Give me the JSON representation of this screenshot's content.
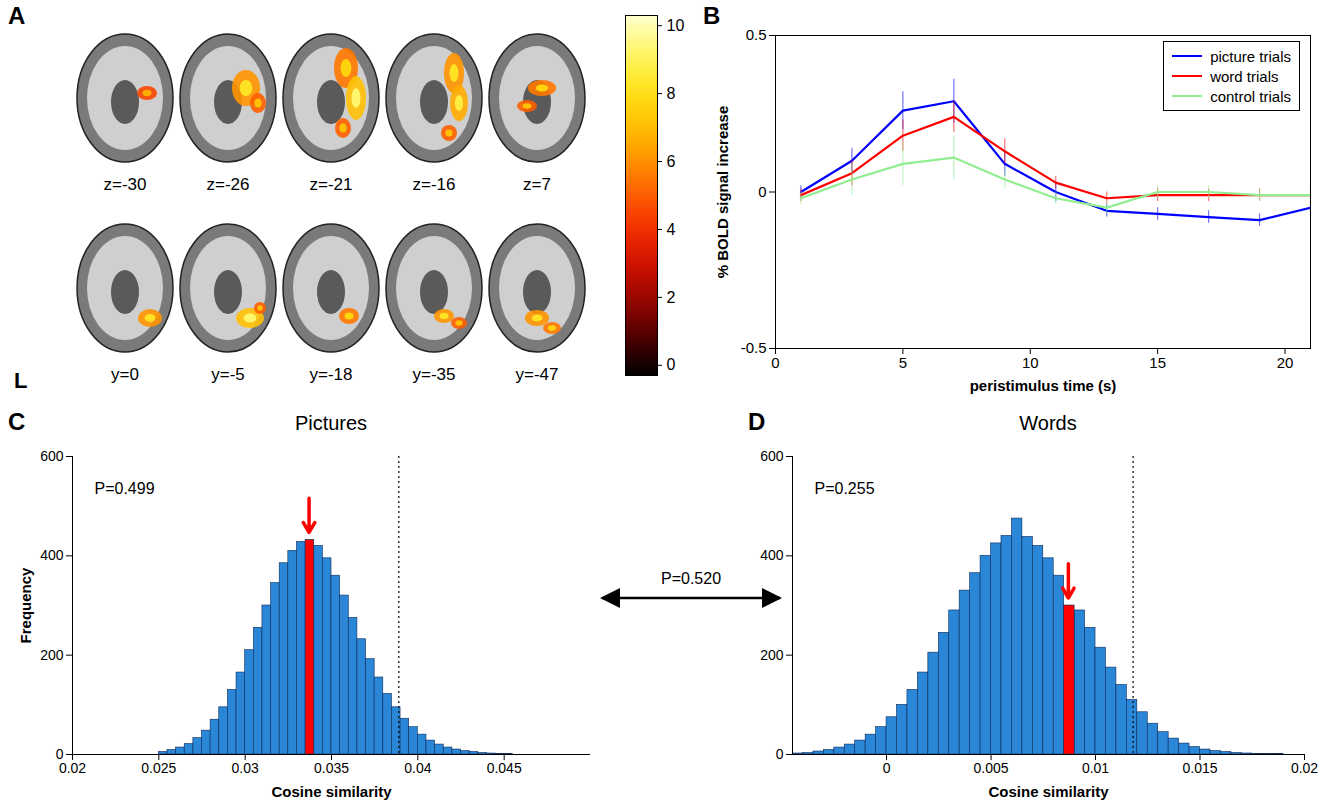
{
  "chart_data": [
    {
      "panel": "A",
      "type": "image",
      "rows": [
        [
          "z=-30",
          "z=-26",
          "z=-21",
          "z=-16",
          "z=7"
        ],
        [
          "y=0",
          "y=-5",
          "y=-18",
          "y=-35",
          "y=-47"
        ]
      ],
      "side_label": "L",
      "colorbar": {
        "range": [
          -0.3,
          10.3
        ],
        "ticks": [
          0,
          2,
          4,
          6,
          8,
          10
        ]
      }
    },
    {
      "panel": "B",
      "type": "line",
      "xlabel": "peristimulus time (s)",
      "ylabel": "% BOLD signal increase",
      "x": [
        1,
        3,
        5,
        7,
        9,
        11,
        13,
        15,
        17,
        19,
        21
      ],
      "xlim": [
        0,
        21
      ],
      "xticks": [
        0,
        5,
        10,
        15,
        20
      ],
      "ylim": [
        -0.5,
        0.5
      ],
      "yticks": [
        -0.5,
        0,
        0.5
      ],
      "legend": "upper right",
      "series": [
        {
          "name": "picture trials",
          "color": "#0000ff",
          "values": [
            0,
            0.1,
            0.26,
            0.29,
            0.09,
            0.0,
            -0.06,
            -0.07,
            -0.08,
            -0.09,
            -0.05
          ],
          "errors": [
            0.02,
            0.04,
            0.06,
            0.07,
            0.04,
            0.03,
            0.02,
            0.02,
            0.02,
            0.02,
            0.02
          ]
        },
        {
          "name": "word trials",
          "color": "#ff0000",
          "values": [
            -0.01,
            0.06,
            0.18,
            0.24,
            0.13,
            0.03,
            -0.02,
            -0.01,
            -0.01,
            -0.01,
            -0.01
          ],
          "errors": [
            0.02,
            0.04,
            0.05,
            0.05,
            0.04,
            0.02,
            0.02,
            0.02,
            0.02,
            0.02,
            0.02
          ]
        },
        {
          "name": "control trials",
          "color": "#90ee90",
          "values": [
            -0.02,
            0.04,
            0.09,
            0.11,
            0.04,
            -0.02,
            -0.05,
            0.0,
            0.0,
            -0.01,
            -0.01
          ],
          "errors": [
            0.02,
            0.05,
            0.07,
            0.07,
            0.03,
            0.02,
            0.02,
            0.02,
            0.02,
            0.02,
            0.02
          ]
        }
      ]
    },
    {
      "panel": "C",
      "type": "histogram",
      "title": "Pictures",
      "xlabel": "Cosine similarity",
      "ylabel": "Frequency",
      "color": "#2a86d6",
      "bins": [
        0.025,
        0.0255,
        0.026,
        0.0265,
        0.027,
        0.0275,
        0.028,
        0.0285,
        0.029,
        0.0295,
        0.03,
        0.0305,
        0.031,
        0.0315,
        0.032,
        0.0325,
        0.033,
        0.0335,
        0.034,
        0.0345,
        0.035,
        0.0355,
        0.036,
        0.0365,
        0.037,
        0.0375,
        0.038,
        0.0385,
        0.039,
        0.0395,
        0.04,
        0.0405,
        0.041,
        0.0415,
        0.042,
        0.0425,
        0.043,
        0.0435,
        0.044,
        0.0445,
        0.045,
        0.0455,
        0.046
      ],
      "values": [
        5,
        9,
        14,
        21,
        33,
        48,
        70,
        95,
        130,
        165,
        210,
        255,
        300,
        345,
        385,
        410,
        428,
        432,
        420,
        395,
        360,
        320,
        275,
        232,
        192,
        155,
        122,
        95,
        72,
        55,
        40,
        28,
        20,
        14,
        10,
        7,
        5,
        3,
        2,
        1,
        1,
        0
      ],
      "observed": 0.0337,
      "threshold": 0.0389,
      "annotation": "P=0.499",
      "xlim": [
        0.02,
        0.05
      ],
      "xticks": [
        0.02,
        0.025,
        0.03,
        0.035,
        0.04,
        0.045
      ],
      "ylim": [
        0,
        600
      ],
      "yticks": [
        0,
        200,
        400,
        600
      ]
    },
    {
      "panel": "D",
      "type": "histogram",
      "title": "Words",
      "xlabel": "Cosine similarity",
      "color": "#2a86d6",
      "bins": [
        -0.0045,
        -0.004,
        -0.0035,
        -0.003,
        -0.0025,
        -0.002,
        -0.0015,
        -0.001,
        -0.0005,
        0,
        0.0005,
        0.001,
        0.0015,
        0.002,
        0.0025,
        0.003,
        0.0035,
        0.004,
        0.0045,
        0.005,
        0.0055,
        0.006,
        0.0065,
        0.007,
        0.0075,
        0.008,
        0.0085,
        0.009,
        0.0095,
        0.01,
        0.0105,
        0.011,
        0.0115,
        0.012,
        0.0125,
        0.013,
        0.0135,
        0.014,
        0.0145,
        0.015,
        0.0155,
        0.016,
        0.0165,
        0.017,
        0.0175,
        0.018,
        0.0185,
        0.019,
        0.0195
      ],
      "values": [
        2,
        3,
        6,
        9,
        14,
        20,
        28,
        40,
        55,
        75,
        100,
        130,
        165,
        205,
        245,
        290,
        330,
        365,
        400,
        425,
        440,
        475,
        438,
        420,
        395,
        360,
        300,
        290,
        255,
        215,
        175,
        140,
        110,
        85,
        62,
        45,
        32,
        22,
        15,
        10,
        7,
        5,
        3,
        2,
        1,
        1,
        1,
        0
      ],
      "observed": 0.0087,
      "threshold": 0.0118,
      "annotation": "P=0.255",
      "xlim": [
        -0.0045,
        0.02
      ],
      "xticks": [
        0,
        0.005,
        0.01,
        0.015,
        0.02
      ],
      "ylim": [
        0,
        600
      ],
      "yticks": [
        0,
        200,
        400,
        600
      ]
    }
  ],
  "annotation": "P=0.520"
}
